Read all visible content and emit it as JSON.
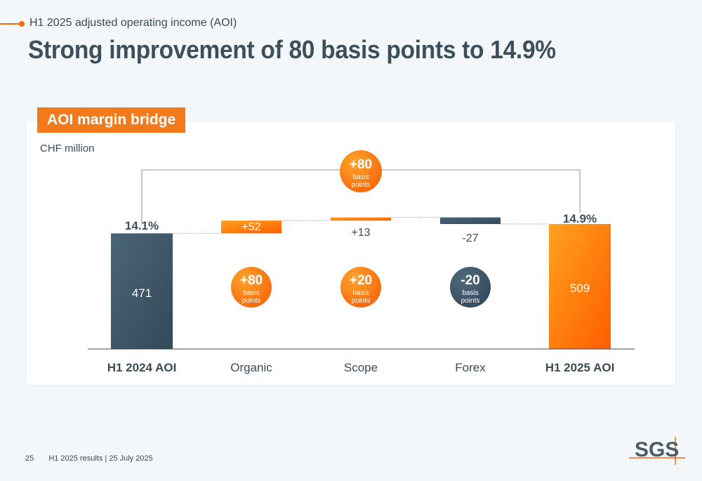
{
  "header": {
    "subtitle": "H1 2025 adjusted operating income (AOI)",
    "title": "Strong improvement of 80 basis points to 14.9%"
  },
  "chart_box": {
    "tab_label": "AOI margin bridge",
    "unit_label": "CHF million"
  },
  "chart_data": {
    "type": "bar",
    "subtype": "waterfall",
    "categories": [
      "H1 2024 AOI",
      "Organic",
      "Scope",
      "Forex",
      "H1 2025 AOI"
    ],
    "values": [
      471,
      52,
      13,
      -27,
      509
    ],
    "value_labels": [
      "471",
      "+52",
      "+13",
      "-27",
      "509"
    ],
    "bar_kinds": [
      "total",
      "delta",
      "delta",
      "delta",
      "total"
    ],
    "margin_labels": {
      "start": "14.1%",
      "end": "14.9%"
    },
    "bps_bubbles": [
      {
        "category": "Organic",
        "value": "+80",
        "unit": "basis points",
        "tone": "orange"
      },
      {
        "category": "Scope",
        "value": "+20",
        "unit": "basis points",
        "tone": "orange"
      },
      {
        "category": "Forex",
        "value": "-20",
        "unit": "basis points",
        "tone": "dark"
      }
    ],
    "total_bubble": {
      "value": "+80",
      "unit": "basis points"
    },
    "colors": {
      "total_start": "#3d5566",
      "total_end": "#ff6d08",
      "positive": "#ff7410",
      "negative": "#3d5566",
      "axis": "#3a4a56"
    }
  },
  "footer": {
    "page": "25",
    "text": "H1 2025 results | 25 July 2025",
    "logo_text": "SGS"
  }
}
